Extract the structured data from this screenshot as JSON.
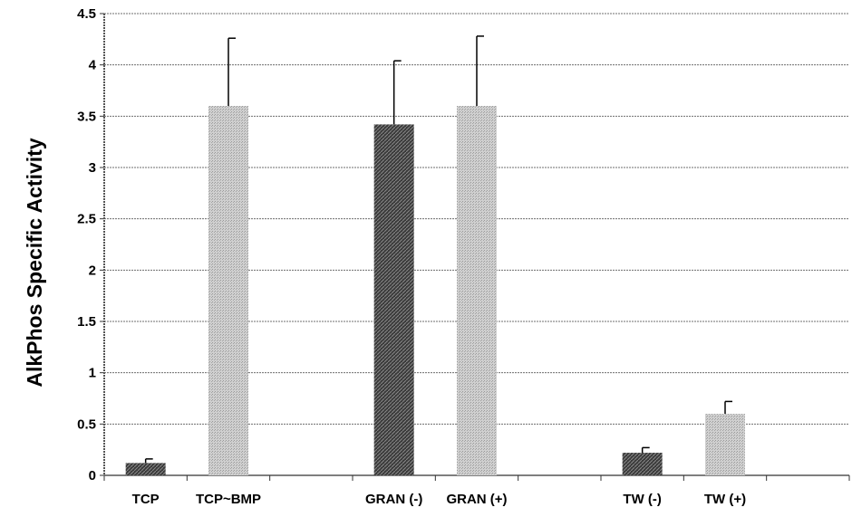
{
  "chart_data": {
    "type": "bar",
    "title": "",
    "xlabel": "",
    "ylabel": "AlkPhos Specific Activity",
    "ylim": [
      0,
      4.5
    ],
    "yticks": [
      "0",
      "0.5",
      "1",
      "1.5",
      "2",
      "2.5",
      "3",
      "3.5",
      "4",
      "4.5"
    ],
    "grid": true,
    "legend": "none",
    "slots": 9,
    "bars": [
      {
        "label": "TCP",
        "slot": 0,
        "value": 0.12,
        "error": 0.04,
        "pattern": "dark",
        "color": "#555555"
      },
      {
        "label": "TCP~BMP",
        "slot": 1,
        "value": 3.6,
        "error": 0.66,
        "pattern": "light",
        "color": "#bdbdbd"
      },
      {
        "label": "GRAN (-)",
        "slot": 3,
        "value": 3.42,
        "error": 0.62,
        "pattern": "dark",
        "color": "#555555"
      },
      {
        "label": "GRAN (+)",
        "slot": 4,
        "value": 3.6,
        "error": 0.68,
        "pattern": "light",
        "color": "#bdbdbd"
      },
      {
        "label": "TW (-)",
        "slot": 6,
        "value": 0.22,
        "error": 0.05,
        "pattern": "dark",
        "color": "#555555"
      },
      {
        "label": "TW (+)",
        "slot": 7,
        "value": 0.6,
        "error": 0.12,
        "pattern": "light",
        "color": "#bdbdbd"
      }
    ]
  }
}
